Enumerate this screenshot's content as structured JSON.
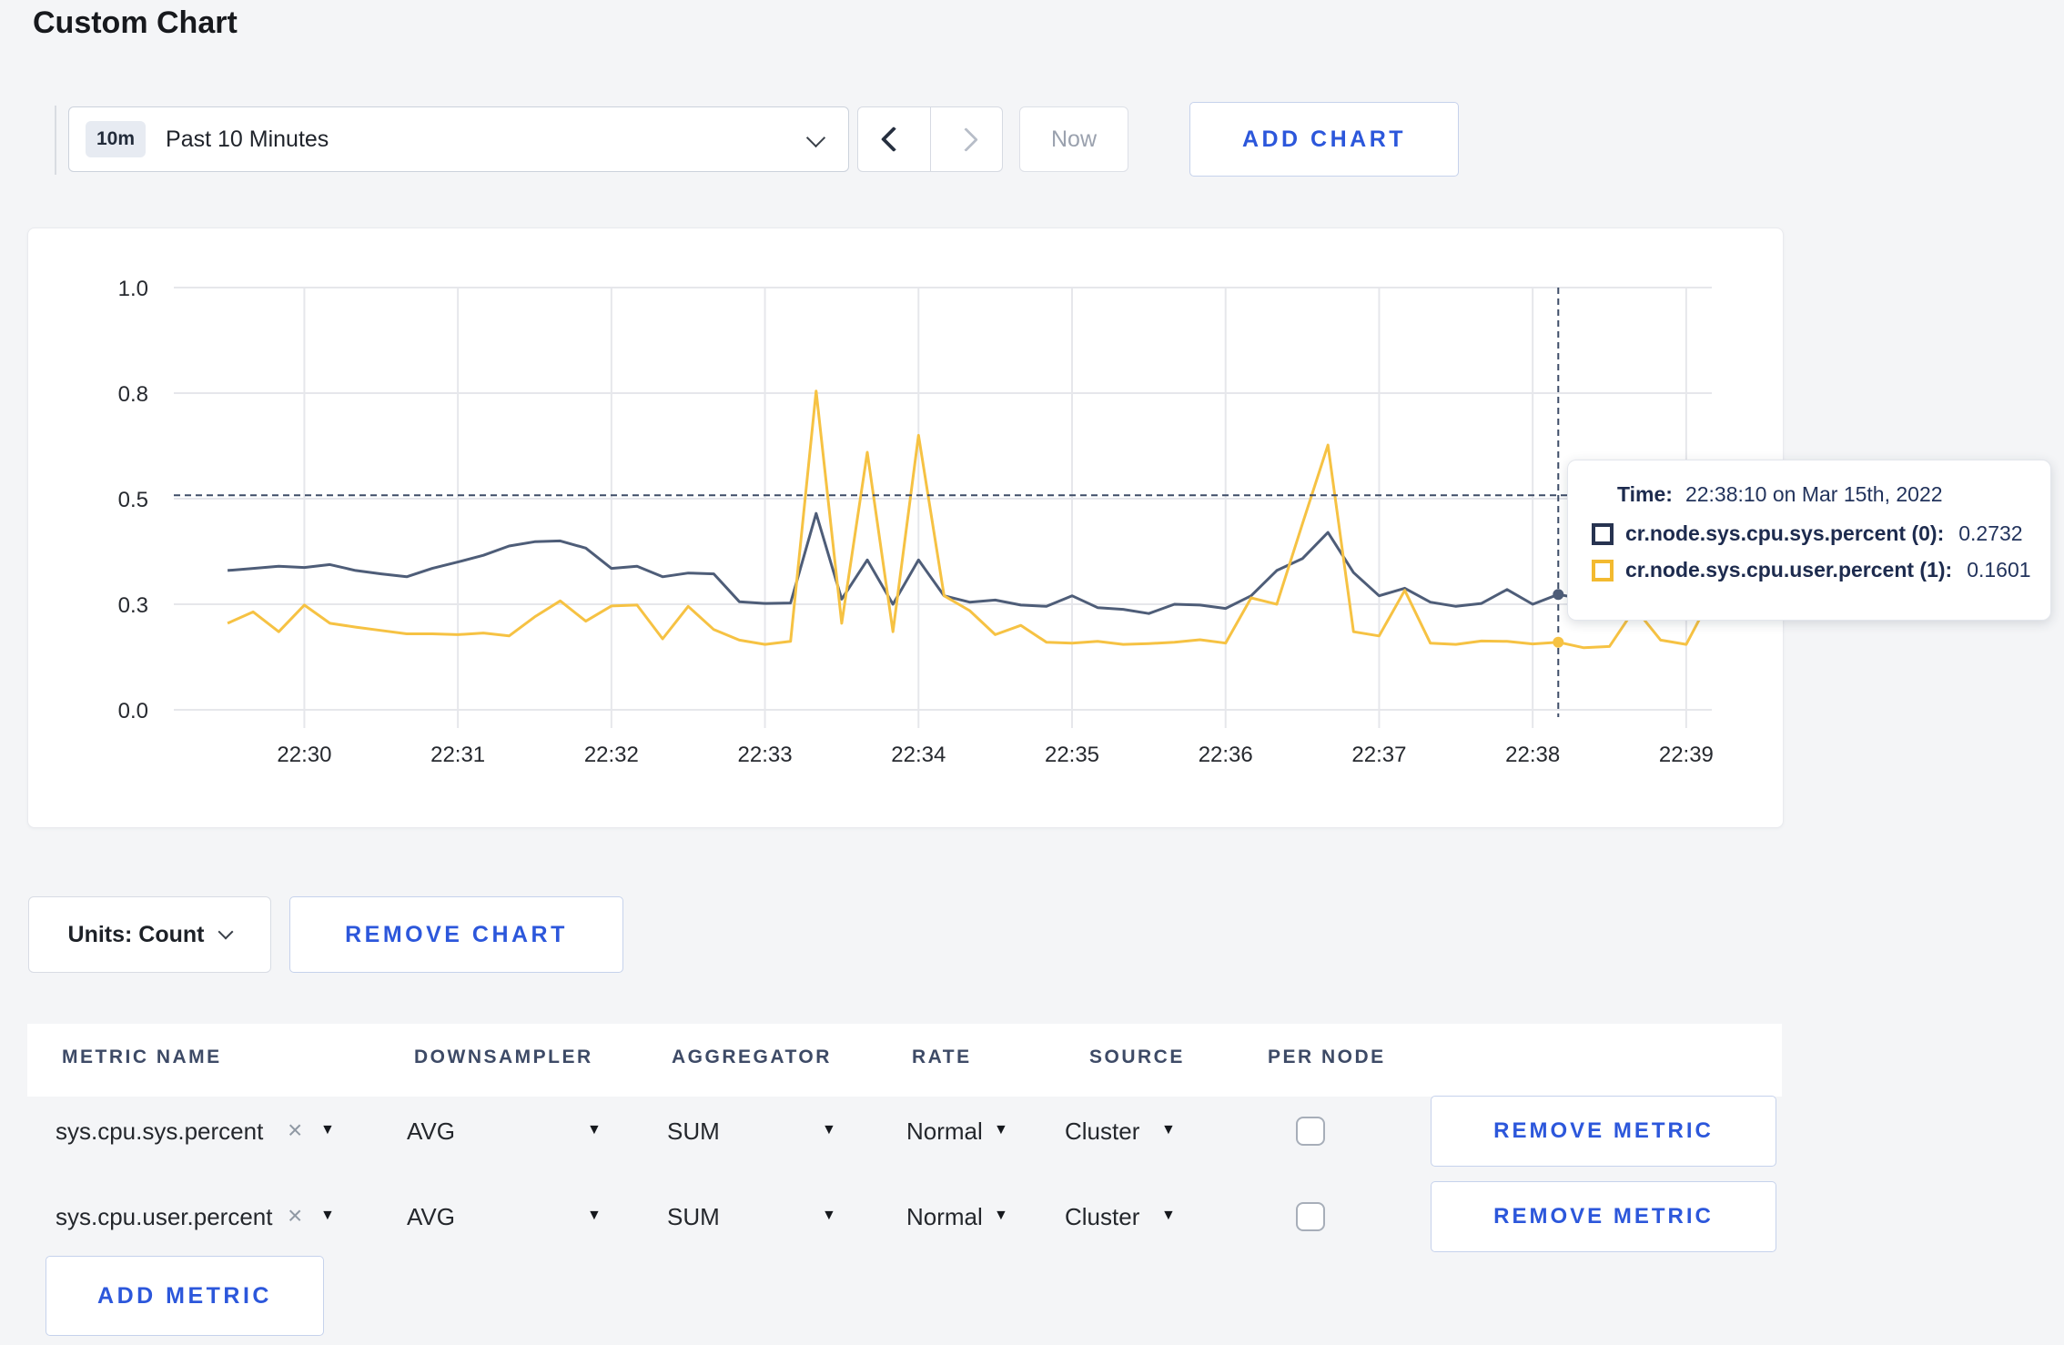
{
  "page": {
    "title": "Custom Chart"
  },
  "icons": {
    "caret": "▼",
    "clear": "×"
  },
  "toolbar": {
    "time_badge": "10m",
    "time_label": "Past 10 Minutes",
    "now_label": "Now",
    "add_chart_label": "ADD CHART"
  },
  "tooltip": {
    "time_label": "Time:",
    "time_value": "22:38:10 on Mar 15th, 2022",
    "rows": [
      {
        "label": "cr.node.sys.cpu.sys.percent (0):",
        "value": "0.2732",
        "color": "#273350"
      },
      {
        "label": "cr.node.sys.cpu.user.percent (1):",
        "value": "0.1601",
        "color": "#f3ba30"
      }
    ]
  },
  "chart_footer": {
    "units_label": "Units: Count",
    "remove_chart_label": "REMOVE CHART"
  },
  "metrics_table": {
    "headers": [
      "METRIC NAME",
      "DOWNSAMPLER",
      "AGGREGATOR",
      "RATE",
      "SOURCE",
      "PER NODE"
    ],
    "rows": [
      {
        "metric": "sys.cpu.sys.percent",
        "downsampler": "AVG",
        "aggregator": "SUM",
        "rate": "Normal",
        "source": "Cluster",
        "per_node": false,
        "remove_label": "REMOVE METRIC"
      },
      {
        "metric": "sys.cpu.user.percent",
        "downsampler": "AVG",
        "aggregator": "SUM",
        "rate": "Normal",
        "source": "Cluster",
        "per_node": false,
        "remove_label": "REMOVE METRIC"
      }
    ],
    "add_metric_label": "ADD METRIC"
  },
  "chart_data": {
    "type": "line",
    "title": "",
    "xlabel": "",
    "ylabel": "",
    "units": "Count",
    "grid": true,
    "grid_color": "#e6e7eb",
    "crosshair_color": "#3e4d68",
    "x_domain_sec": [
      -51,
      550
    ],
    "y_domain": [
      0,
      1
    ],
    "y_ticks": [
      {
        "value": 0,
        "label": "0.0"
      },
      {
        "value": 0.25,
        "label": "0.3"
      },
      {
        "value": 0.5,
        "label": "0.5"
      },
      {
        "value": 0.75,
        "label": "0.8"
      },
      {
        "value": 1,
        "label": "1.0"
      }
    ],
    "x_ticks": [
      {
        "sec": 0,
        "label": "22:30"
      },
      {
        "sec": 60,
        "label": "22:31"
      },
      {
        "sec": 120,
        "label": "22:32"
      },
      {
        "sec": 180,
        "label": "22:33"
      },
      {
        "sec": 240,
        "label": "22:34"
      },
      {
        "sec": 300,
        "label": "22:35"
      },
      {
        "sec": 360,
        "label": "22:36"
      },
      {
        "sec": 420,
        "label": "22:37"
      },
      {
        "sec": 480,
        "label": "22:38"
      },
      {
        "sec": 540,
        "label": "22:39"
      }
    ],
    "crosshair": {
      "sec": 490,
      "time": "22:38:10",
      "h_value": 0.508
    },
    "series": [
      {
        "name": "cr.node.sys.cpu.sys.percent",
        "color": "#4e5d78",
        "marker_value": 0.2732,
        "points": [
          [
            -30,
            0.33
          ],
          [
            -20,
            0.335
          ],
          [
            -10,
            0.34
          ],
          [
            0,
            0.337
          ],
          [
            10,
            0.344
          ],
          [
            20,
            0.33
          ],
          [
            30,
            0.322
          ],
          [
            40,
            0.315
          ],
          [
            50,
            0.335
          ],
          [
            60,
            0.35
          ],
          [
            70,
            0.366
          ],
          [
            80,
            0.388
          ],
          [
            90,
            0.398
          ],
          [
            100,
            0.4
          ],
          [
            110,
            0.383
          ],
          [
            120,
            0.335
          ],
          [
            130,
            0.34
          ],
          [
            140,
            0.315
          ],
          [
            150,
            0.324
          ],
          [
            160,
            0.322
          ],
          [
            170,
            0.256
          ],
          [
            180,
            0.252
          ],
          [
            190,
            0.253
          ],
          [
            200,
            0.465
          ],
          [
            210,
            0.262
          ],
          [
            220,
            0.355
          ],
          [
            230,
            0.25
          ],
          [
            240,
            0.355
          ],
          [
            250,
            0.27
          ],
          [
            260,
            0.255
          ],
          [
            270,
            0.26
          ],
          [
            280,
            0.248
          ],
          [
            290,
            0.245
          ],
          [
            300,
            0.27
          ],
          [
            310,
            0.242
          ],
          [
            320,
            0.238
          ],
          [
            330,
            0.228
          ],
          [
            340,
            0.25
          ],
          [
            350,
            0.248
          ],
          [
            360,
            0.24
          ],
          [
            370,
            0.27
          ],
          [
            380,
            0.33
          ],
          [
            390,
            0.358
          ],
          [
            400,
            0.42
          ],
          [
            410,
            0.325
          ],
          [
            420,
            0.27
          ],
          [
            430,
            0.288
          ],
          [
            440,
            0.255
          ],
          [
            450,
            0.245
          ],
          [
            460,
            0.252
          ],
          [
            470,
            0.285
          ],
          [
            480,
            0.25
          ],
          [
            490,
            0.2732
          ],
          [
            500,
            0.262
          ],
          [
            510,
            0.28
          ],
          [
            520,
            0.3
          ],
          [
            530,
            0.31
          ],
          [
            540,
            0.3
          ],
          [
            550,
            0.305
          ]
        ]
      },
      {
        "name": "cr.node.sys.cpu.user.percent",
        "color": "#f6c243",
        "marker_value": 0.1601,
        "points": [
          [
            -30,
            0.205
          ],
          [
            -20,
            0.232
          ],
          [
            -10,
            0.185
          ],
          [
            0,
            0.248
          ],
          [
            10,
            0.205
          ],
          [
            20,
            0.196
          ],
          [
            30,
            0.188
          ],
          [
            40,
            0.18
          ],
          [
            50,
            0.18
          ],
          [
            60,
            0.178
          ],
          [
            70,
            0.182
          ],
          [
            80,
            0.175
          ],
          [
            90,
            0.22
          ],
          [
            100,
            0.258
          ],
          [
            110,
            0.21
          ],
          [
            120,
            0.246
          ],
          [
            130,
            0.248
          ],
          [
            140,
            0.168
          ],
          [
            150,
            0.245
          ],
          [
            160,
            0.19
          ],
          [
            170,
            0.165
          ],
          [
            180,
            0.155
          ],
          [
            190,
            0.162
          ],
          [
            200,
            0.755
          ],
          [
            210,
            0.205
          ],
          [
            220,
            0.61
          ],
          [
            230,
            0.185
          ],
          [
            240,
            0.65
          ],
          [
            250,
            0.27
          ],
          [
            260,
            0.235
          ],
          [
            270,
            0.178
          ],
          [
            280,
            0.2
          ],
          [
            290,
            0.16
          ],
          [
            300,
            0.158
          ],
          [
            310,
            0.162
          ],
          [
            320,
            0.155
          ],
          [
            330,
            0.157
          ],
          [
            340,
            0.16
          ],
          [
            350,
            0.166
          ],
          [
            360,
            0.158
          ],
          [
            370,
            0.265
          ],
          [
            380,
            0.25
          ],
          [
            390,
            0.44
          ],
          [
            400,
            0.627
          ],
          [
            410,
            0.185
          ],
          [
            420,
            0.175
          ],
          [
            430,
            0.283
          ],
          [
            440,
            0.158
          ],
          [
            450,
            0.155
          ],
          [
            460,
            0.163
          ],
          [
            470,
            0.162
          ],
          [
            480,
            0.156
          ],
          [
            490,
            0.1601
          ],
          [
            500,
            0.147
          ],
          [
            510,
            0.15
          ],
          [
            520,
            0.24
          ],
          [
            530,
            0.165
          ],
          [
            540,
            0.155
          ],
          [
            550,
            0.27
          ]
        ]
      }
    ]
  }
}
